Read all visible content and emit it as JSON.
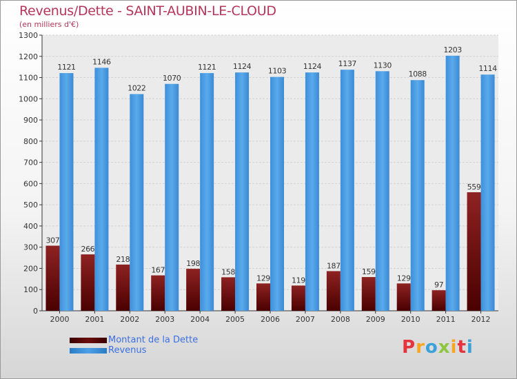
{
  "title": "Revenus/Dette - SAINT-AUBIN-LE-CLOUD",
  "subtitle": "(en milliers d'€)",
  "chart_data": {
    "type": "bar",
    "title": "Revenus/Dette - SAINT-AUBIN-LE-CLOUD",
    "subtitle": "(en milliers d'€)",
    "xlabel": "",
    "ylabel": "",
    "ylim": [
      0,
      1300
    ],
    "yticks": [
      0,
      100,
      200,
      300,
      400,
      500,
      600,
      700,
      800,
      900,
      1000,
      1100,
      1200,
      1300
    ],
    "grid": true,
    "legend_position": "bottom-left",
    "categories": [
      "2000",
      "2001",
      "2002",
      "2003",
      "2004",
      "2005",
      "2006",
      "2007",
      "2008",
      "2009",
      "2010",
      "2011",
      "2012"
    ],
    "series": [
      {
        "name": "Montant de la Dette",
        "color": "#6b0c0c",
        "values": [
          307,
          266,
          218,
          167,
          198,
          158,
          129,
          119,
          187,
          159,
          129,
          97,
          559
        ]
      },
      {
        "name": "Revenus",
        "color": "#4d9fe6",
        "values": [
          1121,
          1146,
          1022,
          1070,
          1121,
          1124,
          1103,
          1124,
          1137,
          1130,
          1088,
          1203,
          1114
        ]
      }
    ]
  },
  "legend": {
    "items": [
      {
        "label": "Montant de la Dette",
        "color": "#6b0c0c"
      },
      {
        "label": "Revenus",
        "color": "#4d9fe6"
      }
    ]
  },
  "logo": {
    "text": "Proxiti",
    "letters": [
      "P",
      "r",
      "o",
      "x",
      "i",
      "t",
      "i"
    ],
    "colors": [
      "#e5343d",
      "#f5a623",
      "#3ba1da",
      "#8cc63f",
      "#f5a623",
      "#e5343d",
      "#3ba1da"
    ]
  }
}
